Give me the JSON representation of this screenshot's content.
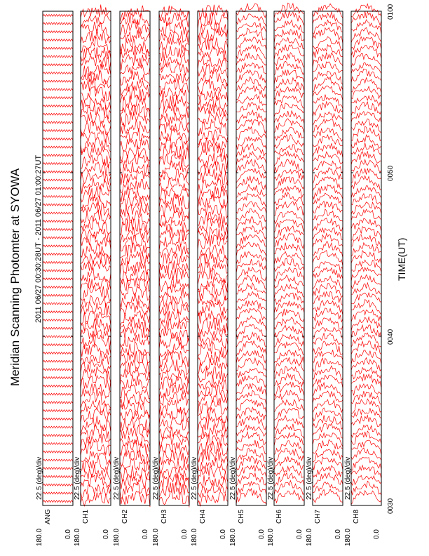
{
  "title": "Meridian Scanning Photomter at SYOWA",
  "subtitle": "2011 06/27 00:30:28UT - 2011 06/27 01:00:27UT",
  "colors": {
    "trace": "#ff0000",
    "axis": "#000000",
    "background": "#ffffff"
  },
  "chart_data": {
    "type": "line",
    "orientation": "rotated-90-ccw",
    "xlabel": "TIME(UT)",
    "x_ticks": [
      "0030",
      "0040",
      "0050",
      "0100"
    ],
    "xlim": [
      "0030",
      "0100"
    ],
    "traces_per_panel": 60,
    "panels": [
      {
        "channel_label": "ANG",
        "scale_label": "22.5 (deg)/div",
        "y_tick_top": "180.0",
        "y_tick_bottom": "0.0"
      },
      {
        "channel_label": "CH1",
        "scale_label": "22.5 (deg)/div",
        "y_tick_top": "180.0",
        "y_tick_bottom": "0.0"
      },
      {
        "channel_label": "CH2",
        "scale_label": "22.5 (deg)/div",
        "y_tick_top": "180.0",
        "y_tick_bottom": "0.0"
      },
      {
        "channel_label": "CH3",
        "scale_label": "22.5 (deg)/div",
        "y_tick_top": "180.0",
        "y_tick_bottom": "0.0"
      },
      {
        "channel_label": "CH4",
        "scale_label": "22.5 (deg)/div",
        "y_tick_top": "180.0",
        "y_tick_bottom": "0.0"
      },
      {
        "channel_label": "CH5",
        "scale_label": "22.5 (deg)/div",
        "y_tick_top": "180.0",
        "y_tick_bottom": "0.0"
      },
      {
        "channel_label": "CH6",
        "scale_label": "22.5 (deg)/div",
        "y_tick_top": "180.0",
        "y_tick_bottom": "0.0"
      },
      {
        "channel_label": "CH7",
        "scale_label": "22.5 (deg)/div",
        "y_tick_top": "180.0",
        "y_tick_bottom": "0.0"
      },
      {
        "channel_label": "CH8",
        "scale_label": "22.5 (deg)/div",
        "y_tick_top": "180.0",
        "y_tick_bottom": "0.0"
      }
    ]
  }
}
